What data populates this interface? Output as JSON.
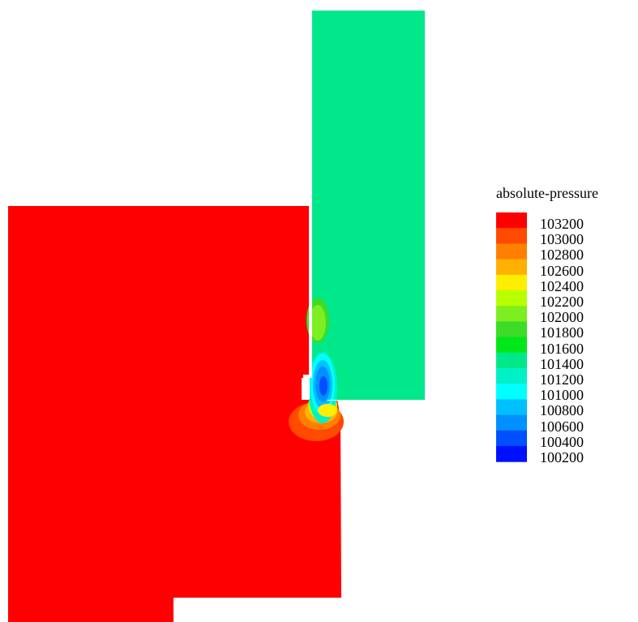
{
  "legend": {
    "title": "absolute-pressure",
    "entries": [
      {
        "label": "103200",
        "color": "#ff0000"
      },
      {
        "label": "103000",
        "color": "#ff4a00"
      },
      {
        "label": "102800",
        "color": "#ff8000"
      },
      {
        "label": "102600",
        "color": "#ffb000"
      },
      {
        "label": "102400",
        "color": "#ffee00"
      },
      {
        "label": "102200",
        "color": "#b8ff00"
      },
      {
        "label": "102000",
        "color": "#7dee20"
      },
      {
        "label": "101800",
        "color": "#3cdc28"
      },
      {
        "label": "101600",
        "color": "#00e81a"
      },
      {
        "label": "101400",
        "color": "#00e88a"
      },
      {
        "label": "101200",
        "color": "#00f0c8"
      },
      {
        "label": "101000",
        "color": "#00ffff"
      },
      {
        "label": "100800",
        "color": "#00c0ff"
      },
      {
        "label": "100600",
        "color": "#0090ff"
      },
      {
        "label": "100400",
        "color": "#0050ff"
      },
      {
        "label": "100200",
        "color": "#0010ff"
      }
    ]
  },
  "regions": {
    "high_pressure_color": "#ff0000",
    "outlet_pressure_color": "#00e88a"
  }
}
